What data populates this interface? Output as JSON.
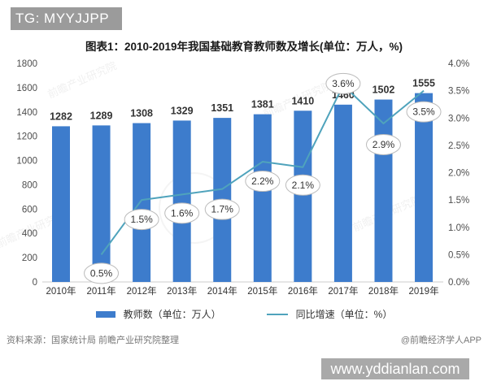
{
  "header": {
    "badge": "TG: MYYJJPP"
  },
  "title": "图表1：2010-2019年我国基础教育教师数及增长(单位：万人，%)",
  "chart_data": {
    "type": "bar+line",
    "title": "图表1：2010-2019年我国基础教育教师数及增长(单位：万人，%)",
    "categories": [
      "2010年",
      "2011年",
      "2012年",
      "2013年",
      "2014年",
      "2015年",
      "2016年",
      "2017年",
      "2018年",
      "2019年"
    ],
    "series": [
      {
        "name": "教师数（单位：万人）",
        "type": "bar",
        "axis": "left",
        "color": "#3d7ccc",
        "values": [
          1282,
          1289,
          1308,
          1329,
          1351,
          1381,
          1410,
          1460,
          1502,
          1555
        ]
      },
      {
        "name": "同比增速（单位：%）",
        "type": "line",
        "axis": "right",
        "color": "#4fa3bc",
        "values": [
          null,
          0.5,
          1.5,
          1.6,
          1.7,
          2.2,
          2.1,
          3.6,
          2.9,
          3.5
        ],
        "point_labels": [
          null,
          "0.5%",
          "1.5%",
          "1.6%",
          "1.7%",
          "2.2%",
          "2.1%",
          "3.6%",
          "2.9%",
          "3.5%"
        ],
        "label_dy": [
          0,
          23,
          24,
          23,
          25,
          24,
          22,
          -2,
          26,
          26
        ]
      }
    ],
    "y_left": {
      "min": 0,
      "max": 1800,
      "step": 200
    },
    "y_right": {
      "min": 0,
      "max": 4,
      "step": 0.5,
      "suffix": "%"
    },
    "grid": false,
    "legend_position": "bottom"
  },
  "legend": {
    "bar_label": "教师数（单位：万人）",
    "line_label": "同比增速（单位：%）"
  },
  "footer": {
    "source": "资料来源：国家统计局 前瞻产业研究院整理",
    "credit": "@前瞻经济学人APP",
    "site": "www.yddianlan.com"
  },
  "watermark": {
    "text": "前瞻产业研究院"
  },
  "colors": {
    "bar": "#3d7ccc",
    "line": "#4fa3bc",
    "badge_bg": "#9b9b9b",
    "site_bg": "#a9a9a9",
    "axis_text": "#4d4d4d",
    "bar_label_text": "#333333",
    "ellipse_border": "#bbbbbb",
    "axis_line": "#cccccc"
  }
}
